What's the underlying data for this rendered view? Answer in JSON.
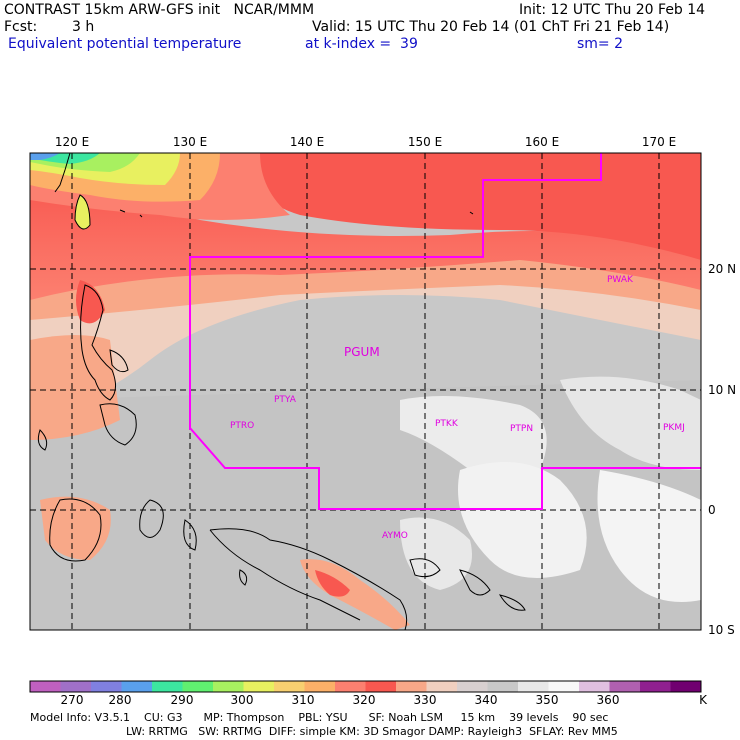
{
  "header": {
    "line1_left": "CONTRAST 15km ARW-GFS init   NCAR/MMM",
    "init": "Init: 12 UTC Thu 20 Feb 14",
    "fcst_label": "Fcst:",
    "fcst_value": "3 h",
    "valid": "Valid: 15 UTC Thu 20 Feb 14 (01 ChT Fri 21 Feb 14)",
    "field": "Equivalent potential temperature",
    "level": "at k-index =  39",
    "smooth": "sm= 2"
  },
  "map": {
    "lon_labels": [
      "120 E",
      "130 E",
      "140 E",
      "150 E",
      "160 E",
      "170 E"
    ],
    "lat_labels": [
      "20 N",
      "10 N",
      "0",
      "10 S"
    ],
    "stations": [
      "PGUM",
      "PWAK",
      "PTYA",
      "PTRO",
      "PTKK",
      "PTPN",
      "PKMJ",
      "AYMO"
    ]
  },
  "colorbar": {
    "labels": [
      "270",
      "280",
      "290",
      "300",
      "310",
      "320",
      "330",
      "340",
      "350",
      "360"
    ],
    "unit": "K",
    "colors": [
      "#c060c0",
      "#a070c8",
      "#8080e0",
      "#5aa0ec",
      "#3ce6a0",
      "#60f070",
      "#a8f060",
      "#e8f060",
      "#f8d070",
      "#fcb068",
      "#fc8070",
      "#f85850",
      "#f8a888",
      "#f0d0c0",
      "#d8d0d0",
      "#c8c8c8",
      "#e8e8e8",
      "#f8f8f8",
      "#e0c0e0",
      "#b060b0",
      "#902090",
      "#700070"
    ]
  },
  "footer": {
    "line1": "Model Info: V3.5.1    CU: G3      MP: Thompson    PBL: YSU      SF: Noah LSM     15 km    39 levels    90 sec",
    "line2": "LW: RRTMG   SW: RRTMG  DIFF: simple KM: 3D Smagor DAMP: Rayleigh3  SFLAY: Rev MM5"
  }
}
